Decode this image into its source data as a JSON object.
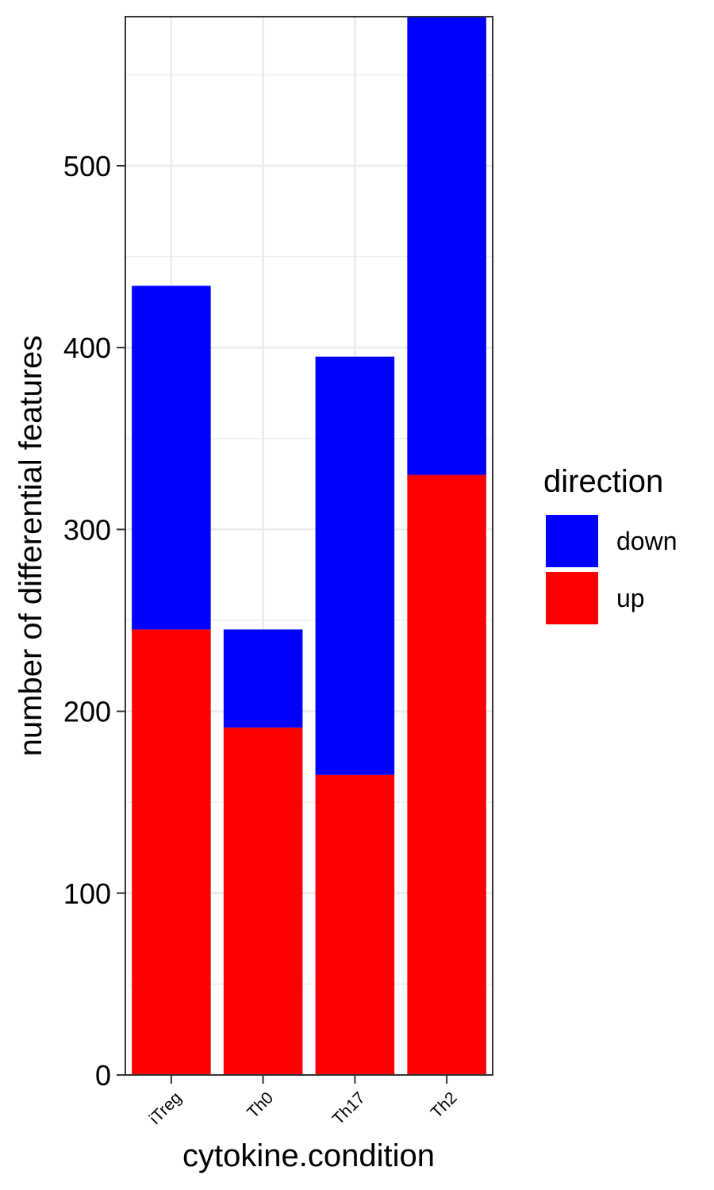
{
  "chart_data": {
    "type": "bar",
    "stacked": true,
    "categories": [
      "iTreg",
      "Th0",
      "Th17",
      "Th2"
    ],
    "series": [
      {
        "name": "up",
        "color": "#ff0000",
        "values": [
          245,
          191,
          165,
          330
        ]
      },
      {
        "name": "down",
        "color": "#0000ff",
        "values": [
          189,
          54,
          230,
          252
        ]
      }
    ],
    "xlabel": "cytokine.condition",
    "ylabel": "number of differential features",
    "ylim": [
      0,
      582
    ],
    "yticks": [
      0,
      100,
      200,
      300,
      400,
      500
    ],
    "grid": true,
    "legend": {
      "title": "direction",
      "position": "right",
      "entries": [
        {
          "label": "down",
          "color": "#0000ff"
        },
        {
          "label": "up",
          "color": "#ff0000"
        }
      ]
    }
  }
}
